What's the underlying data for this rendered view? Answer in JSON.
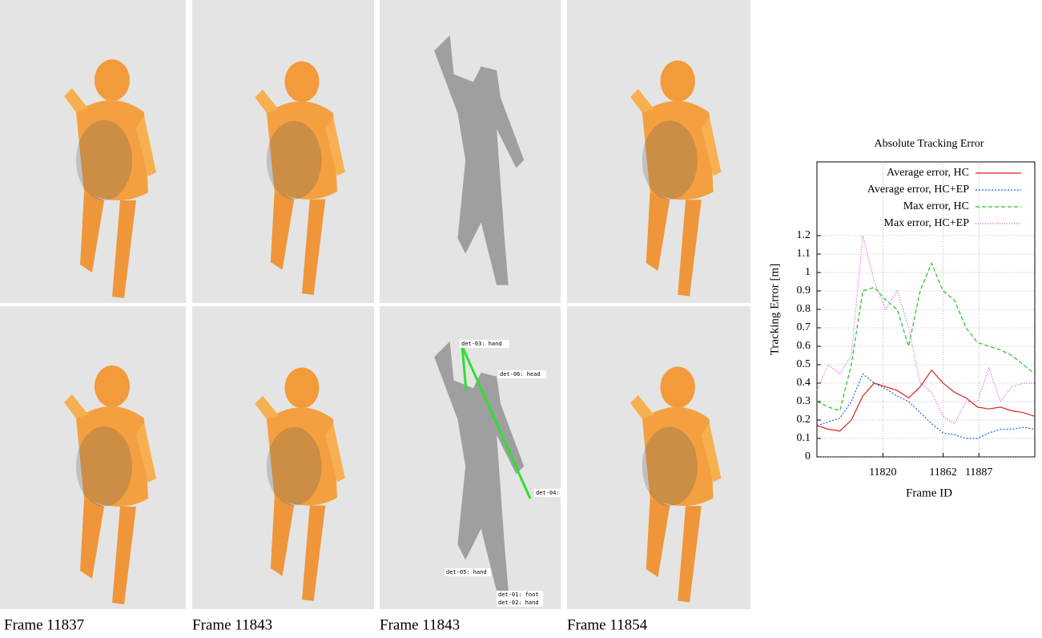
{
  "panels": {
    "captions": [
      "Frame 11837",
      "Frame 11843",
      "Frame 11843",
      "Frame 11854"
    ],
    "detections": [
      "det-03: hand",
      "det-06: head",
      "det-04:",
      "det-05: hand",
      "det-01: foot",
      "det-02: hand"
    ]
  },
  "chart_data": {
    "type": "line",
    "title": "Absolute Tracking Error",
    "x_label": "Frame ID",
    "y_label": "Tracking Error [m]",
    "x": [
      11774,
      11782,
      11790,
      11798,
      11806,
      11814,
      11822,
      11830,
      11838,
      11846,
      11854,
      11862,
      11870,
      11878,
      11886,
      11894,
      11902,
      11910,
      11918,
      11926
    ],
    "series": [
      {
        "name": "Average error, HC",
        "color": "#e02020",
        "dash": "none",
        "values": [
          0.17,
          0.15,
          0.14,
          0.2,
          0.33,
          0.4,
          0.38,
          0.36,
          0.32,
          0.38,
          0.47,
          0.4,
          0.35,
          0.32,
          0.27,
          0.26,
          0.27,
          0.25,
          0.24,
          0.22
        ]
      },
      {
        "name": "Average error, HC+EP",
        "color": "#2060e0",
        "dash": "2,2",
        "values": [
          0.17,
          0.19,
          0.21,
          0.3,
          0.45,
          0.4,
          0.37,
          0.33,
          0.3,
          0.24,
          0.18,
          0.13,
          0.12,
          0.1,
          0.1,
          0.13,
          0.15,
          0.15,
          0.16,
          0.15
        ]
      },
      {
        "name": "Max error, HC",
        "color": "#20c020",
        "dash": "5,3",
        "values": [
          0.3,
          0.27,
          0.25,
          0.5,
          0.9,
          0.92,
          0.85,
          0.8,
          0.6,
          0.9,
          1.05,
          0.9,
          0.85,
          0.7,
          0.62,
          0.6,
          0.58,
          0.55,
          0.5,
          0.45
        ]
      },
      {
        "name": "Max error, HC+EP",
        "color": "#e040e0",
        "dash": "1,2",
        "values": [
          0.36,
          0.5,
          0.45,
          0.55,
          1.2,
          0.95,
          0.8,
          0.9,
          0.7,
          0.4,
          0.35,
          0.22,
          0.18,
          0.3,
          0.3,
          0.48,
          0.3,
          0.38,
          0.4,
          0.4
        ]
      }
    ],
    "xlim": [
      11774,
      11926
    ],
    "xticks": [
      11820,
      11862,
      11887
    ],
    "ylim": [
      0,
      1.6
    ],
    "yticks": [
      0,
      0.1,
      0.2,
      0.3,
      0.4,
      0.5,
      0.6,
      0.7,
      0.8,
      0.9,
      1,
      1.1,
      1.2
    ],
    "grid": true,
    "legend": "top-right"
  }
}
